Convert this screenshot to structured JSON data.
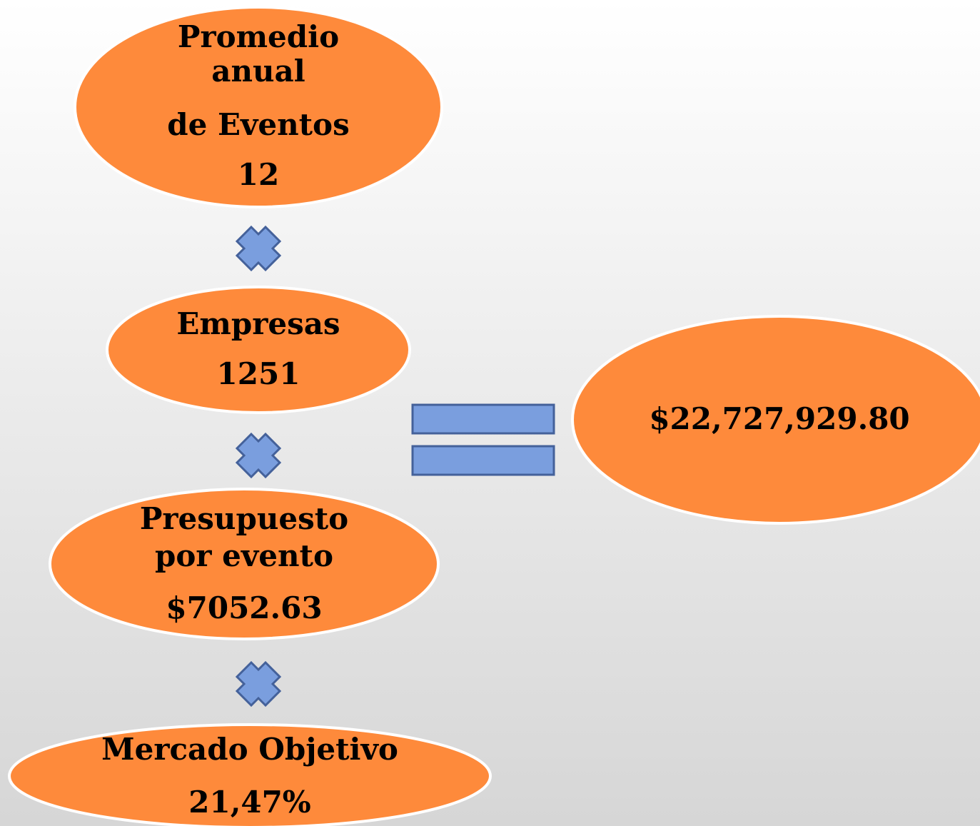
{
  "nodes": [
    {
      "lines": [
        "Promedio",
        "anual",
        "de Eventos",
        "12"
      ]
    },
    {
      "lines": [
        "Empresas",
        "1251"
      ]
    },
    {
      "lines": [
        "Presupuesto",
        "por evento",
        "$7052.63"
      ]
    },
    {
      "lines": [
        "Mercado Objetivo",
        "21,47%"
      ]
    }
  ],
  "result": {
    "lines": [
      "$22,727,929.80"
    ]
  }
}
